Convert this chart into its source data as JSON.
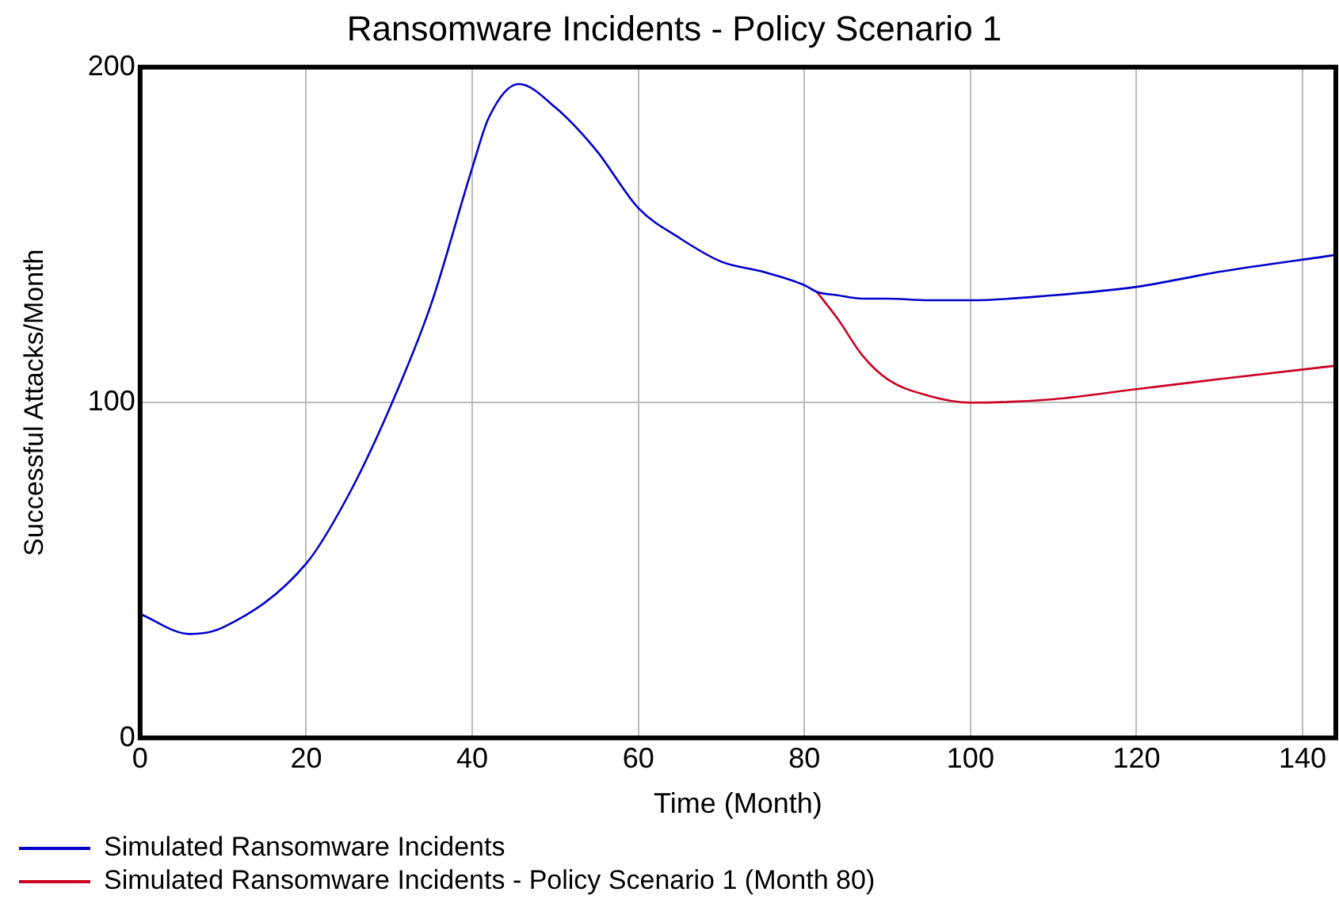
{
  "chart_data": {
    "type": "line",
    "title": "Ransomware Incidents - Policy Scenario 1",
    "xlabel": "Time (Month)",
    "ylabel": "Successful Attacks/Month",
    "x": [
      0,
      6,
      10,
      20,
      25,
      30,
      35,
      40,
      42,
      45.6,
      50,
      55,
      60,
      65,
      70,
      75,
      80,
      81.5,
      84,
      87,
      90,
      95,
      100,
      110,
      120,
      130,
      144
    ],
    "series": [
      {
        "name": "Simulated Ransomware Incidents",
        "color": "#0000cc",
        "values": [
          37,
          31,
          33,
          52,
          72,
          98,
          129,
          170,
          185,
          195,
          188,
          175,
          158,
          149,
          142,
          139,
          135,
          133,
          132,
          131,
          131,
          130.5,
          130.5,
          132,
          134.5,
          139,
          144
        ]
      },
      {
        "name": "Simulated Ransomware Incidents - Policy Scenario 1 (Month 80)",
        "color": "#cc0022",
        "values": [
          null,
          null,
          null,
          null,
          null,
          null,
          null,
          null,
          null,
          null,
          null,
          null,
          null,
          null,
          null,
          null,
          null,
          133,
          125,
          114,
          107,
          102,
          100,
          101,
          104,
          107,
          111
        ]
      }
    ],
    "xlim": [
      0,
      144
    ],
    "xticks": [
      0,
      20,
      40,
      60,
      80,
      100,
      120,
      140
    ],
    "ylim": [
      0,
      200
    ],
    "yticks": [
      0,
      100,
      200
    ],
    "grid": true,
    "legend": "bottom",
    "marker": "none",
    "line_style": "solid"
  }
}
